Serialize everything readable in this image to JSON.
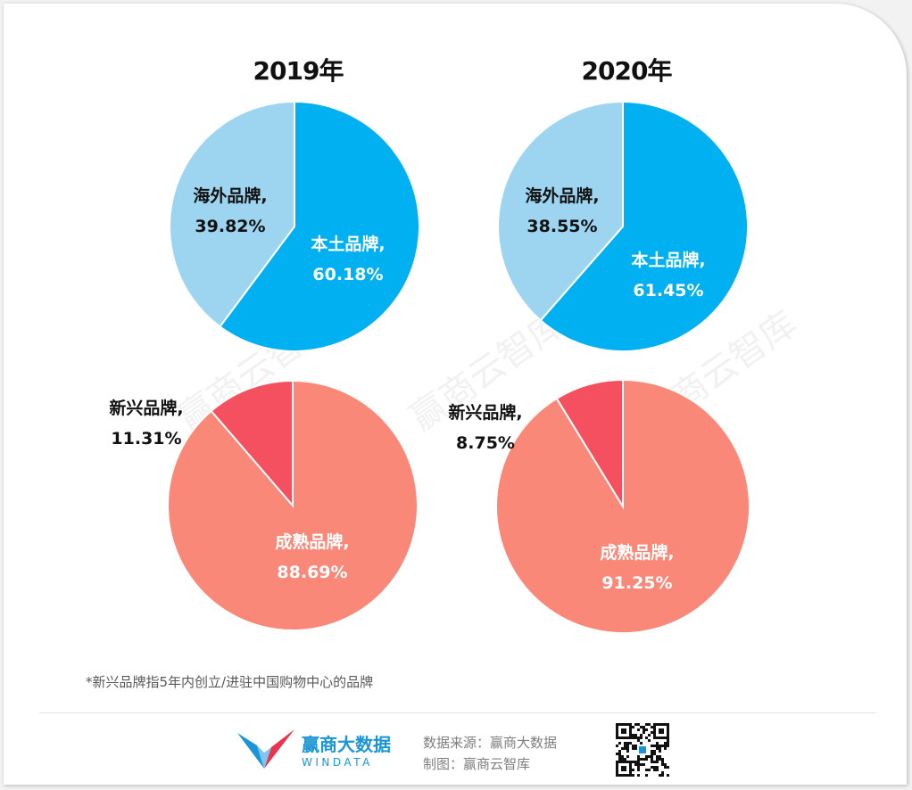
{
  "chart_data": [
    {
      "type": "pie",
      "title": "2019年",
      "slices": [
        {
          "label": "本土品牌,",
          "value": 60.18,
          "display": "60.18%",
          "color": "#00b0f0"
        },
        {
          "label": "海外品牌,",
          "value": 39.82,
          "display": "39.82%",
          "color": "#9dd5f0"
        }
      ]
    },
    {
      "type": "pie",
      "title": "2020年",
      "slices": [
        {
          "label": "本土品牌,",
          "value": 61.45,
          "display": "61.45%",
          "color": "#00b0f0"
        },
        {
          "label": "海外品牌,",
          "value": 38.55,
          "display": "38.55%",
          "color": "#9dd5f0"
        }
      ]
    },
    {
      "type": "pie",
      "title": "",
      "slices": [
        {
          "label": "新兴品牌,",
          "value": 11.31,
          "display": "11.31%",
          "color": "#f4505f"
        },
        {
          "label": "成熟品牌,",
          "value": 88.69,
          "display": "88.69%",
          "color": "#fa8878"
        }
      ]
    },
    {
      "type": "pie",
      "title": "",
      "slices": [
        {
          "label": "新兴品牌,",
          "value": 8.75,
          "display": "8.75%",
          "color": "#f4505f"
        },
        {
          "label": "成熟品牌,",
          "value": 91.25,
          "display": "91.25%",
          "color": "#fa8878"
        }
      ]
    }
  ],
  "footnote": "*新兴品牌指5年内创立/进驻中国购物中心的品牌",
  "footer": {
    "logo_cn": "赢商大数据",
    "logo_en": "WINDATA",
    "source": "数据来源：赢商大数据",
    "maker": "制图：赢商云智库"
  },
  "watermark": "赢商云智库",
  "colors": {
    "domestic": "#00b0f0",
    "overseas": "#9dd5f0",
    "emerging": "#f4505f",
    "mature": "#fa8878",
    "brand_blue": "#1a96d6",
    "brand_red": "#e8344e"
  }
}
